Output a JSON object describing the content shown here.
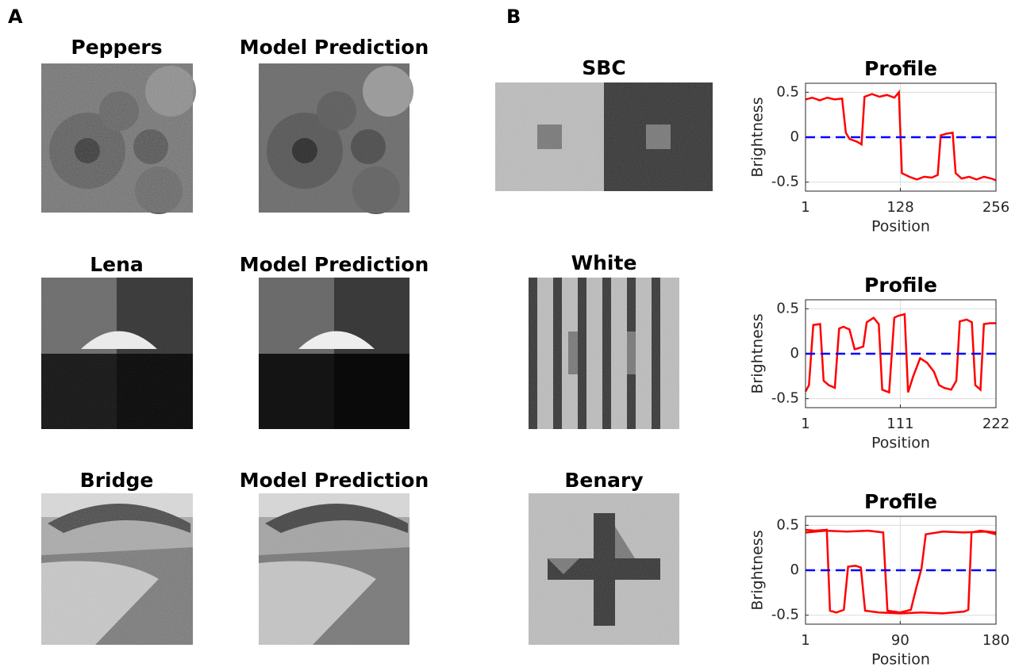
{
  "panel_labels": [
    "A",
    "B"
  ],
  "natural_images": [
    {
      "title": "Peppers"
    },
    {
      "title": "Model Prediction"
    },
    {
      "title": "Lena"
    },
    {
      "title": "Model Prediction"
    },
    {
      "title": "Bridge"
    },
    {
      "title": "Model Prediction"
    }
  ],
  "stimuli": [
    {
      "title": "SBC"
    },
    {
      "title": "White"
    },
    {
      "title": "Benary"
    }
  ],
  "chart_data": [
    {
      "type": "line",
      "title": "Profile",
      "xlabel": "Position",
      "ylabel": "Brightness",
      "xlim": [
        1,
        256
      ],
      "xticks": [
        1,
        128,
        256
      ],
      "ylim": [
        -0.6,
        0.6
      ],
      "yticks": [
        -0.5,
        0,
        0.5
      ],
      "grid": true,
      "series": [
        {
          "color": "#ff0000",
          "dashed": false,
          "x": [
            1,
            10,
            20,
            30,
            40,
            50,
            55,
            60,
            70,
            76,
            80,
            90,
            100,
            110,
            120,
            126,
            130,
            140,
            150,
            160,
            170,
            178,
            182,
            190,
            198,
            202,
            210,
            220,
            230,
            240,
            250,
            256
          ],
          "values": [
            0.42,
            0.44,
            0.41,
            0.44,
            0.42,
            0.43,
            0.05,
            -0.02,
            -0.05,
            -0.08,
            0.45,
            0.48,
            0.45,
            0.47,
            0.44,
            0.5,
            -0.4,
            -0.44,
            -0.47,
            -0.44,
            -0.45,
            -0.42,
            0.02,
            0.04,
            0.05,
            -0.4,
            -0.46,
            -0.44,
            -0.47,
            -0.44,
            -0.46,
            -0.48
          ]
        },
        {
          "color": "#0000ff",
          "dashed": true,
          "x": [
            1,
            256
          ],
          "values": [
            0,
            0
          ]
        }
      ]
    },
    {
      "type": "line",
      "title": "Profile",
      "xlabel": "Position",
      "ylabel": "Brightness",
      "xlim": [
        1,
        222
      ],
      "xticks": [
        1,
        111,
        222
      ],
      "ylim": [
        -0.6,
        0.6
      ],
      "yticks": [
        -0.5,
        0,
        0.5
      ],
      "grid": true,
      "series": [
        {
          "color": "#ff0000",
          "dashed": false,
          "x": [
            1,
            5,
            10,
            18,
            22,
            28,
            35,
            40,
            45,
            52,
            58,
            62,
            68,
            72,
            80,
            86,
            90,
            98,
            104,
            108,
            116,
            120,
            126,
            134,
            142,
            150,
            156,
            162,
            170,
            176,
            180,
            188,
            194,
            198,
            204,
            208,
            215,
            222
          ],
          "values": [
            -0.42,
            -0.35,
            0.32,
            0.33,
            -0.3,
            -0.35,
            -0.38,
            0.28,
            0.3,
            0.27,
            0.05,
            0.06,
            0.08,
            0.35,
            0.4,
            0.33,
            -0.4,
            -0.43,
            0.4,
            0.42,
            0.44,
            -0.43,
            -0.25,
            -0.05,
            -0.1,
            -0.2,
            -0.35,
            -0.38,
            -0.4,
            -0.3,
            0.36,
            0.38,
            0.35,
            -0.35,
            -0.4,
            0.33,
            0.34,
            0.34
          ]
        },
        {
          "color": "#0000ff",
          "dashed": true,
          "x": [
            1,
            222
          ],
          "values": [
            0,
            0
          ]
        }
      ]
    },
    {
      "type": "line",
      "title": "Profile",
      "xlabel": "Position",
      "ylabel": "Brightness",
      "xlim": [
        1,
        180
      ],
      "xticks": [
        1,
        90,
        180
      ],
      "ylim": [
        -0.6,
        0.6
      ],
      "yticks": [
        -0.5,
        0,
        0.5
      ],
      "grid": true,
      "series": [
        {
          "color": "#ff0000",
          "dashed": false,
          "x": [
            1,
            20,
            40,
            60,
            74,
            78,
            90,
            100,
            105,
            110,
            114,
            130,
            150,
            170,
            180
          ],
          "values": [
            0.42,
            0.44,
            0.43,
            0.44,
            0.42,
            -0.45,
            -0.47,
            -0.44,
            -0.2,
            0.02,
            0.4,
            0.43,
            0.42,
            0.43,
            0.4
          ]
        },
        {
          "color": "#ff0000",
          "dashed": false,
          "x": [
            1,
            10,
            21,
            24,
            30,
            37,
            41,
            48,
            53,
            57,
            70,
            90,
            110,
            130,
            150,
            154,
            157,
            165,
            180
          ],
          "values": [
            0.45,
            0.44,
            0.45,
            -0.45,
            -0.47,
            -0.44,
            0.04,
            0.05,
            0.03,
            -0.45,
            -0.47,
            -0.48,
            -0.47,
            -0.48,
            -0.46,
            -0.44,
            0.42,
            0.44,
            0.42
          ]
        },
        {
          "color": "#0000ff",
          "dashed": true,
          "x": [
            1,
            180
          ],
          "values": [
            0,
            0
          ]
        }
      ]
    }
  ]
}
